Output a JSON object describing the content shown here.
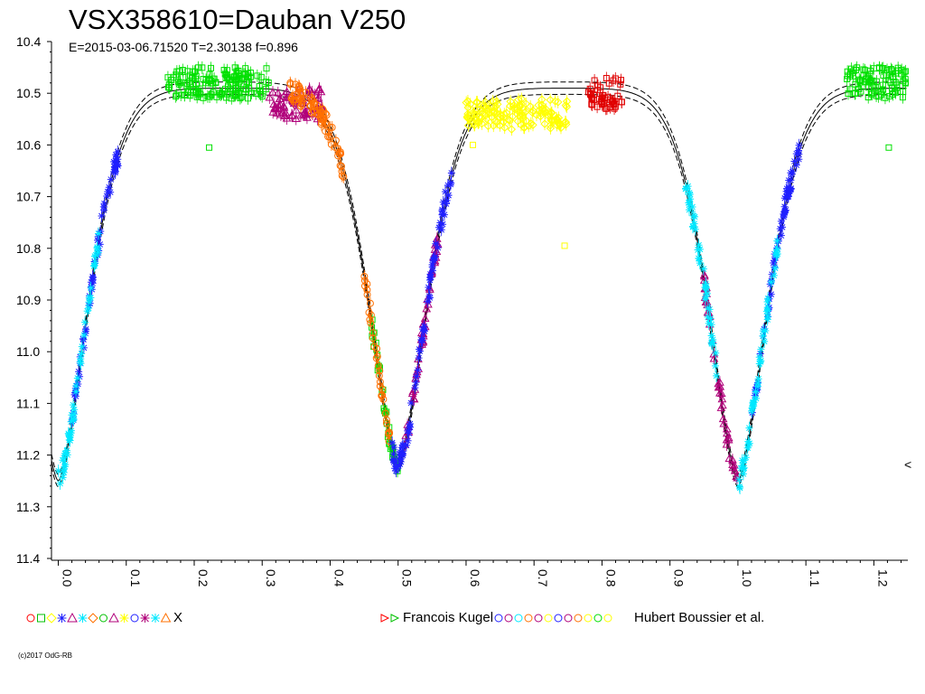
{
  "chart_data": {
    "type": "scatter",
    "title": "VSX358610=Dauban V250",
    "subtitle": "E=2015-03-06.71520    T=2.30138    f=0.896",
    "xlim": [
      -0.01,
      1.25
    ],
    "ylim": [
      11.4,
      10.4
    ],
    "y_inverted": true,
    "grid": false,
    "y_ticks": [
      "10.4",
      "10.5",
      "10.6",
      "10.7",
      "10.8",
      "10.9",
      "11.0",
      "11.1",
      "11.2",
      "11.3",
      "11.4"
    ],
    "y_tick_values": [
      10.4,
      10.5,
      10.6,
      10.7,
      10.8,
      10.9,
      11.0,
      11.1,
      11.2,
      11.3,
      11.4
    ],
    "x_ticks": [
      "0.0",
      "0.1",
      "0.2",
      "0.3",
      "0.4",
      "0.5",
      "0.6",
      "0.7",
      "0.8",
      "0.9",
      "1.0",
      "1.1",
      "1.2"
    ],
    "x_tick_values": [
      0.0,
      0.1,
      0.2,
      0.3,
      0.4,
      0.5,
      0.6,
      0.7,
      0.8,
      0.9,
      1.0,
      1.1,
      1.2
    ],
    "model_curve": {
      "max_mag": 10.49,
      "primary_min": {
        "phase": 0.0,
        "mag": 11.25
      },
      "secondary_min": {
        "phase": 0.5,
        "mag": 11.22
      }
    },
    "series": [
      {
        "color": "#00e000",
        "marker": "square",
        "segments": [
          [
            0.16,
            0.31,
            10.48
          ],
          [
            0.46,
            0.5,
            null
          ],
          [
            1.16,
            1.25,
            10.48
          ]
        ]
      },
      {
        "color": "#b0007a",
        "marker": "triangle",
        "segments": [
          [
            0.31,
            0.39,
            10.52
          ],
          [
            0.51,
            0.56,
            null
          ],
          [
            0.95,
            1.0,
            null
          ]
        ]
      },
      {
        "color": "#ff7000",
        "marker": "circle",
        "segments": [
          [
            0.34,
            0.42,
            null
          ],
          [
            0.45,
            0.49,
            null
          ]
        ]
      },
      {
        "color": "#2020ff",
        "marker": "star",
        "segments": [
          [
            0.02,
            0.09,
            null
          ],
          [
            0.49,
            0.58,
            null
          ],
          [
            1.02,
            1.09,
            null
          ]
        ]
      },
      {
        "color": "#00e8ff",
        "marker": "star",
        "segments": [
          [
            0.0,
            0.06,
            null
          ],
          [
            0.92,
            0.97,
            null
          ],
          [
            1.0,
            1.06,
            null
          ]
        ]
      },
      {
        "color": "#ffff00",
        "marker": "diamond",
        "segments": [
          [
            0.6,
            0.75,
            10.54
          ]
        ]
      },
      {
        "color": "#e00000",
        "marker": "square",
        "segments": [
          [
            0.78,
            0.83,
            10.5
          ]
        ]
      }
    ],
    "outliers": [
      {
        "x": 0.222,
        "y": 10.605,
        "color": "#00e000"
      },
      {
        "x": 1.222,
        "y": 10.605,
        "color": "#00e000"
      },
      {
        "x": 0.745,
        "y": 10.795,
        "color": "#ffff00"
      },
      {
        "x": 0.61,
        "y": 10.6,
        "color": "#ffff00"
      }
    ],
    "legend": {
      "left_label": "X",
      "middle_label": "Francois Kugel",
      "right_label": "Hubert Boussier et al."
    },
    "legend_glyph_colors": [
      "#ff0000",
      "#00c000",
      "#ffff00",
      "#2020ff",
      "#b0007a",
      "#00e8ff",
      "#ff7000",
      "#00c000",
      "#b0007a",
      "#ffff00",
      "#2020ff",
      "#b0007a",
      "#00e8ff",
      "#ff7000"
    ],
    "credit": "(c)2017 OdG-RB",
    "right_edge_mark": "<"
  }
}
